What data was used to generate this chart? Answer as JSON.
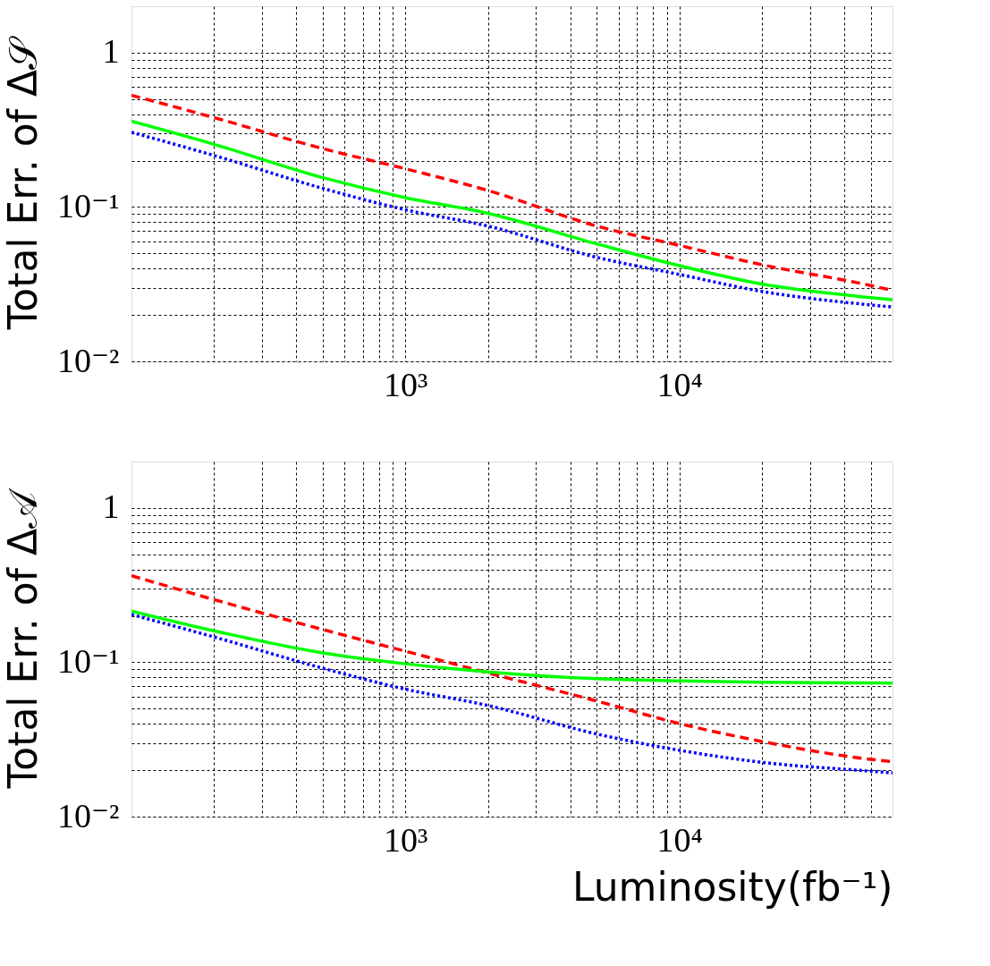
{
  "chart_data": [
    {
      "type": "line",
      "ylabel": "Total Err. of Δ𝒮",
      "log": "xy",
      "grid": true,
      "xlim": [
        100,
        60000
      ],
      "ylim": [
        0.01,
        2
      ],
      "xticks": [
        {
          "value": 200,
          "label": null
        },
        {
          "value": 300,
          "label": null
        },
        {
          "value": 400,
          "label": null
        },
        {
          "value": 500,
          "label": null
        },
        {
          "value": 600,
          "label": null
        },
        {
          "value": 700,
          "label": null
        },
        {
          "value": 800,
          "label": null
        },
        {
          "value": 900,
          "label": null
        },
        {
          "value": 1000,
          "label": "10³"
        },
        {
          "value": 2000,
          "label": null
        },
        {
          "value": 3000,
          "label": null
        },
        {
          "value": 4000,
          "label": null
        },
        {
          "value": 5000,
          "label": null
        },
        {
          "value": 6000,
          "label": null
        },
        {
          "value": 7000,
          "label": null
        },
        {
          "value": 8000,
          "label": null
        },
        {
          "value": 9000,
          "label": null
        },
        {
          "value": 10000,
          "label": "10⁴"
        },
        {
          "value": 20000,
          "label": null
        },
        {
          "value": 30000,
          "label": null
        },
        {
          "value": 40000,
          "label": null
        },
        {
          "value": 50000,
          "label": null
        }
      ],
      "yticks": [
        {
          "value": 0.02,
          "label": null
        },
        {
          "value": 0.03,
          "label": null
        },
        {
          "value": 0.04,
          "label": null
        },
        {
          "value": 0.05,
          "label": null
        },
        {
          "value": 0.06,
          "label": null
        },
        {
          "value": 0.07,
          "label": null
        },
        {
          "value": 0.08,
          "label": null
        },
        {
          "value": 0.09,
          "label": null
        },
        {
          "value": 0.1,
          "label": "10⁻¹"
        },
        {
          "value": 0.2,
          "label": null
        },
        {
          "value": 0.3,
          "label": null
        },
        {
          "value": 0.4,
          "label": null
        },
        {
          "value": 0.5,
          "label": null
        },
        {
          "value": 0.6,
          "label": null
        },
        {
          "value": 0.7,
          "label": null
        },
        {
          "value": 0.8,
          "label": null
        },
        {
          "value": 0.9,
          "label": null
        },
        {
          "value": 1,
          "label": "1"
        },
        {
          "value": 0.01,
          "label": "10⁻²"
        }
      ],
      "x": [
        100,
        200,
        500,
        1000,
        2000,
        5000,
        10000,
        20000,
        50000,
        60000
      ],
      "series": [
        {
          "color": "#ff0000",
          "line_style": "dashed",
          "values": [
            0.53,
            0.38,
            0.239,
            0.177,
            0.128,
            0.0753,
            0.0564,
            0.0423,
            0.031,
            0.0288
          ]
        },
        {
          "color": "#00ff00",
          "line_style": "solid",
          "values": [
            0.36,
            0.255,
            0.155,
            0.115,
            0.0911,
            0.0577,
            0.0417,
            0.0317,
            0.0259,
            0.0251
          ]
        },
        {
          "color": "#0000ff",
          "line_style": "dotted",
          "values": [
            0.305,
            0.216,
            0.132,
            0.096,
            0.0753,
            0.0472,
            0.0366,
            0.0284,
            0.0232,
            0.0225
          ]
        }
      ]
    },
    {
      "type": "line",
      "ylabel": "Total Err. of Δ𝒜",
      "xlabel": "Luminosity(fb⁻¹)",
      "log": "xy",
      "grid": true,
      "xlim": [
        100,
        60000
      ],
      "ylim": [
        0.01,
        2
      ],
      "xticks": [
        {
          "value": 200,
          "label": null
        },
        {
          "value": 300,
          "label": null
        },
        {
          "value": 400,
          "label": null
        },
        {
          "value": 500,
          "label": null
        },
        {
          "value": 600,
          "label": null
        },
        {
          "value": 700,
          "label": null
        },
        {
          "value": 800,
          "label": null
        },
        {
          "value": 900,
          "label": null
        },
        {
          "value": 1000,
          "label": "10³"
        },
        {
          "value": 2000,
          "label": null
        },
        {
          "value": 3000,
          "label": null
        },
        {
          "value": 4000,
          "label": null
        },
        {
          "value": 5000,
          "label": null
        },
        {
          "value": 6000,
          "label": null
        },
        {
          "value": 7000,
          "label": null
        },
        {
          "value": 8000,
          "label": null
        },
        {
          "value": 9000,
          "label": null
        },
        {
          "value": 10000,
          "label": "10⁴"
        },
        {
          "value": 20000,
          "label": null
        },
        {
          "value": 30000,
          "label": null
        },
        {
          "value": 40000,
          "label": null
        },
        {
          "value": 50000,
          "label": null
        }
      ],
      "yticks": [
        {
          "value": 0.02,
          "label": null
        },
        {
          "value": 0.03,
          "label": null
        },
        {
          "value": 0.04,
          "label": null
        },
        {
          "value": 0.05,
          "label": null
        },
        {
          "value": 0.06,
          "label": null
        },
        {
          "value": 0.07,
          "label": null
        },
        {
          "value": 0.08,
          "label": null
        },
        {
          "value": 0.09,
          "label": null
        },
        {
          "value": 0.1,
          "label": "10⁻¹"
        },
        {
          "value": 0.2,
          "label": null
        },
        {
          "value": 0.3,
          "label": null
        },
        {
          "value": 0.4,
          "label": null
        },
        {
          "value": 0.5,
          "label": null
        },
        {
          "value": 0.6,
          "label": null
        },
        {
          "value": 0.7,
          "label": null
        },
        {
          "value": 0.8,
          "label": null
        },
        {
          "value": 0.9,
          "label": null
        },
        {
          "value": 1,
          "label": "1"
        },
        {
          "value": 0.01,
          "label": "10⁻²"
        }
      ],
      "x": [
        100,
        200,
        500,
        1000,
        2000,
        5000,
        10000,
        20000,
        50000,
        60000
      ],
      "series": [
        {
          "color": "#ff0000",
          "line_style": "dashed",
          "values": [
            0.364,
            0.255,
            0.163,
            0.118,
            0.0855,
            0.0561,
            0.0401,
            0.0307,
            0.0235,
            0.0227
          ]
        },
        {
          "color": "#00ff00",
          "line_style": "solid",
          "values": [
            0.215,
            0.16,
            0.115,
            0.0978,
            0.0867,
            0.0783,
            0.0759,
            0.0742,
            0.0735,
            0.0732
          ]
        },
        {
          "color": "#0000ff",
          "line_style": "dotted",
          "values": [
            0.204,
            0.146,
            0.0915,
            0.067,
            0.0525,
            0.0343,
            0.0269,
            0.0225,
            0.0197,
            0.0192
          ]
        }
      ]
    }
  ]
}
